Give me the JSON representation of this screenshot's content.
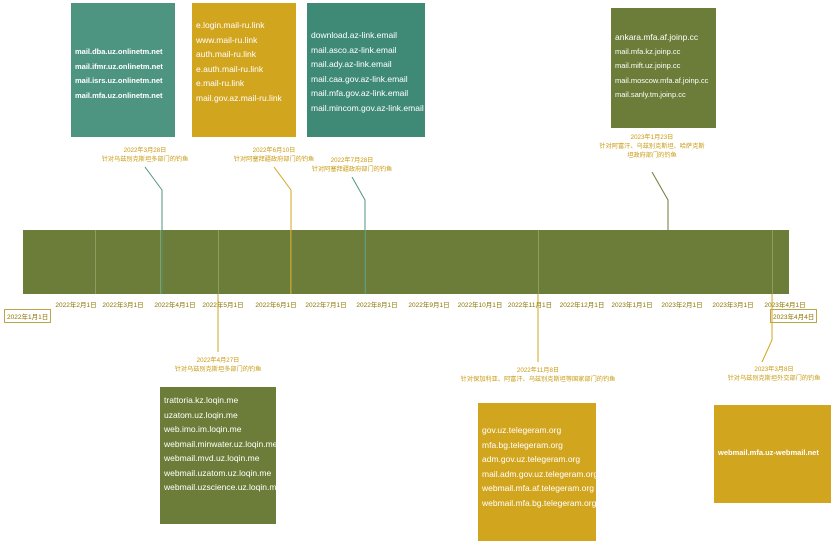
{
  "axis_start": "2022年1月1日",
  "axis_end": "2023年4月4日",
  "months": [
    "2022年2月1日",
    "2022年3月1日",
    "2022年4月1日",
    "2022年5月1日",
    "2022年6月1日",
    "2022年7月1日",
    "2022年8月1日",
    "2022年9月1日",
    "2022年10月1日",
    "2022年11月1日",
    "2022年12月1日",
    "2023年1月1日",
    "2023年2月1日",
    "2023年3月1日",
    "2023年4月1日"
  ],
  "events": [
    {
      "date": "2022年3月28日",
      "desc": "针对乌兹别克斯坦多部门的钓鱼",
      "domains": [
        "mail.dba.uz.onlinetm.net",
        "mail.ifmr.uz.onlinetm.net",
        "mail.isrs.uz.onlinetm.net",
        "mail.mfa.uz.onlinetm.net"
      ]
    },
    {
      "date": "2022年4月27日",
      "desc": "针对乌兹别克斯坦多部门的钓鱼",
      "domains": [
        "trattoria.kz.loqin.me",
        "uzatom.uz.loqin.me",
        "web.imo.im.loqin.me",
        "webmail.minwater.uz.loqin.me",
        "webmail.mvd.uz.loqin.me",
        "webmail.uzatom.uz.loqin.me",
        "webmail.uzscience.uz.loqin.me"
      ]
    },
    {
      "date": "2022年6月10日",
      "desc": "针对阿塞拜疆政府部门的钓鱼",
      "domains": [
        "e.login.mail-ru.link",
        "www.mail-ru.link",
        "auth.mail-ru.link",
        "e.auth.mail-ru.link",
        "e.mail-ru.link",
        "mail.gov.az.mail-ru.link"
      ]
    },
    {
      "date": "2022年7月28日",
      "desc": "针对阿塞拜疆政府部门的钓鱼",
      "domains": [
        "download.az-link.email",
        "mail.asco.az-link.email",
        "mail.ady.az-link.email",
        "mail.caa.gov.az-link.email",
        "mail.mfa.gov.az-link.email",
        "mail.mincom.gov.az-link.email"
      ]
    },
    {
      "date": "2022年11月8日",
      "desc": "针对保加利亚、阿富汗、乌兹别克斯坦等国家部门的钓鱼",
      "domains": [
        "gov.uz.telegeram.org",
        "mfa.bg.telegeram.org",
        "adm.gov.uz.telegeram.org",
        "mail.adm.gov.uz.telegeram.org",
        "webmail.mfa.af.telegeram.org",
        "webmail.mfa.bg.telegeram.org"
      ]
    },
    {
      "date": "2023年1月23日",
      "desc": "针对阿富汗、乌兹别克斯坦、哈萨克斯坦政府部门的钓鱼",
      "domains": [
        "ankara.mfa.af.joinp.cc",
        "mail.mfa.kz.joinp.cc",
        "mail.mift.uz.joinp.cc",
        "mail.moscow.mfa.af.joinp.cc",
        "mail.sanly.tm.joinp.cc"
      ]
    },
    {
      "date": "2023年3月8日",
      "desc": "针对乌兹别克斯坦外交部门的钓鱼",
      "domains": [
        "webmail.mfa.uz-webmail.net"
      ]
    }
  ]
}
